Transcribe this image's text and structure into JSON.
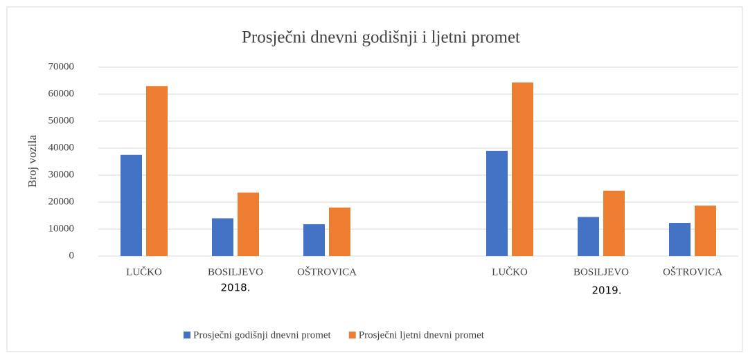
{
  "chart_data": {
    "type": "bar",
    "title": "Prosječni dnevni godišnji i ljetni promet",
    "y_label": "Broj vozila",
    "categories": [
      "LUČKO",
      "BOSILJEVO",
      "OŠTROVICA",
      null,
      "LUČKO",
      "BOSILJEVO",
      "OŠTROVICA"
    ],
    "series": [
      {
        "name": "Prosječni godišnji dnevni promet",
        "color": "#4472c4",
        "values": [
          37500,
          14000,
          11800,
          null,
          39000,
          14500,
          12300
        ]
      },
      {
        "name": "Prosječni ljetni dnevni promet",
        "color": "#ed7d31",
        "values": [
          63000,
          23500,
          18000,
          null,
          64300,
          24200,
          18700
        ]
      }
    ],
    "annotations": [
      "2018.",
      "2019."
    ],
    "ylim": [
      0,
      70000
    ],
    "yticks": [
      0,
      10000,
      20000,
      30000,
      40000,
      50000,
      60000,
      70000
    ],
    "grid": true,
    "legend": "bottom"
  }
}
